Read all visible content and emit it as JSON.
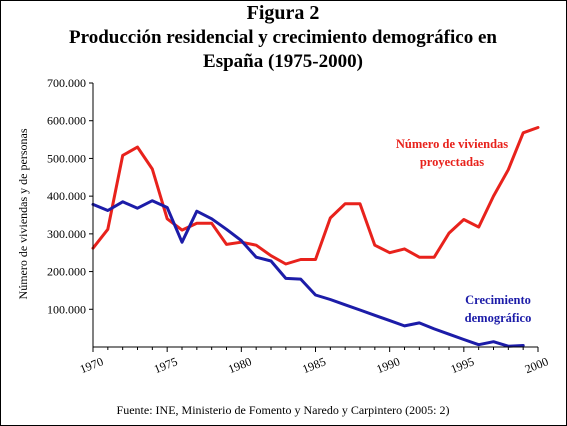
{
  "figure_label": "Figura 2",
  "title_line1": "Producción residencial y crecimiento demográfico en",
  "title_line2": "España (1975-2000)",
  "source": "Fuente: INE, Ministerio de Fomento y Naredo y Carpintero (2005: 2)",
  "chart_data": {
    "type": "line",
    "title": "Producción residencial y crecimiento demográfico en España (1975-2000)",
    "xlabel": "",
    "ylabel": "Número de viviendas y de personas",
    "xlim": [
      1970,
      2000
    ],
    "ylim": [
      0,
      700000
    ],
    "x_ticks": [
      1970,
      1975,
      1980,
      1985,
      1990,
      1995,
      2000
    ],
    "x_tick_labels": [
      "1970",
      "1975",
      "1980",
      "1985",
      "1990",
      "1995",
      "2000"
    ],
    "y_ticks": [
      100000,
      200000,
      300000,
      400000,
      500000,
      600000,
      700000
    ],
    "y_tick_labels": [
      "100.000",
      "200.000",
      "300.000",
      "400.000",
      "500.000",
      "600.000",
      "700.000"
    ],
    "grid": false,
    "legend": "inline annotations",
    "series": [
      {
        "name_lines": [
          "Número de viviendas",
          "proyectadas"
        ],
        "color": "#e8221c",
        "x": [
          1970,
          1971,
          1972,
          1973,
          1974,
          1975,
          1976,
          1977,
          1978,
          1979,
          1980,
          1981,
          1982,
          1983,
          1984,
          1985,
          1986,
          1987,
          1988,
          1989,
          1990,
          1991,
          1992,
          1993,
          1994,
          1995,
          1996,
          1997,
          1998,
          1999,
          2000
        ],
        "values": [
          262000,
          312000,
          508000,
          530000,
          472000,
          340000,
          310000,
          328000,
          328000,
          272000,
          278000,
          270000,
          242000,
          220000,
          232000,
          232000,
          342000,
          380000,
          380000,
          270000,
          250000,
          260000,
          238000,
          238000,
          302000,
          338000,
          318000,
          400000,
          470000,
          568000,
          582000
        ]
      },
      {
        "name_lines": [
          "Crecimiento",
          "demográfico"
        ],
        "color": "#1c1ca8",
        "x": [
          1970,
          1971,
          1972,
          1973,
          1974,
          1975,
          1976,
          1977,
          1978,
          1979,
          1980,
          1981,
          1982,
          1983,
          1984,
          1985,
          1986,
          1987,
          1988,
          1989,
          1990,
          1991,
          1992,
          1993,
          1994,
          1995,
          1996,
          1997,
          1998,
          1999
        ],
        "values": [
          378000,
          362000,
          385000,
          368000,
          388000,
          370000,
          278000,
          360000,
          340000,
          312000,
          282000,
          238000,
          228000,
          182000,
          180000,
          138000,
          126000,
          112000,
          98000,
          84000,
          70000,
          56000,
          64000,
          48000,
          34000,
          20000,
          6000,
          14000,
          2000,
          4000
        ]
      }
    ]
  }
}
